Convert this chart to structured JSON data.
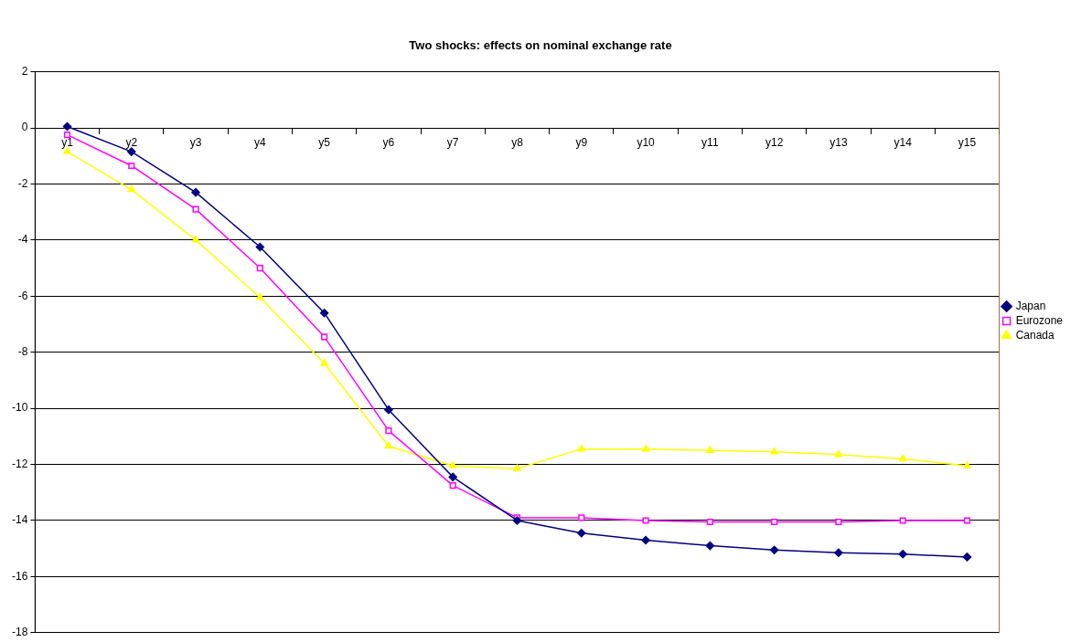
{
  "chart_data": {
    "type": "line",
    "title": "Two shocks: effects on nominal exchange rate",
    "categories": [
      "y1",
      "y2",
      "y3",
      "y4",
      "y5",
      "y6",
      "y7",
      "y8",
      "y9",
      "y10",
      "y11",
      "y12",
      "y13",
      "y14",
      "y15"
    ],
    "series": [
      {
        "name": "Japan",
        "color": "#000080",
        "marker": "diamond",
        "values": [
          0.05,
          -0.85,
          -2.3,
          -4.25,
          -6.6,
          -10.05,
          -12.45,
          -14.0,
          -14.45,
          -14.7,
          -14.9,
          -15.05,
          -15.15,
          -15.2,
          -15.3
        ]
      },
      {
        "name": "Eurozone",
        "color": "#ff00ff",
        "marker": "square",
        "values": [
          -0.25,
          -1.35,
          -2.9,
          -5.0,
          -7.45,
          -10.8,
          -12.75,
          -13.9,
          -13.9,
          -14.0,
          -14.05,
          -14.05,
          -14.05,
          -14.0,
          -14.0
        ]
      },
      {
        "name": "Canada",
        "color": "#ffff00",
        "marker": "triangle",
        "values": [
          -0.85,
          -2.2,
          -4.0,
          -6.05,
          -8.4,
          -11.35,
          -12.05,
          -12.15,
          -11.45,
          -11.45,
          -11.5,
          -11.55,
          -11.65,
          -11.8,
          -12.05
        ]
      }
    ],
    "ylim": [
      -18,
      2
    ],
    "yticks": [
      -18,
      -16,
      -14,
      -12,
      -10,
      -8,
      -6,
      -4,
      -2,
      0,
      2
    ],
    "grid": "y",
    "legend": "right"
  }
}
